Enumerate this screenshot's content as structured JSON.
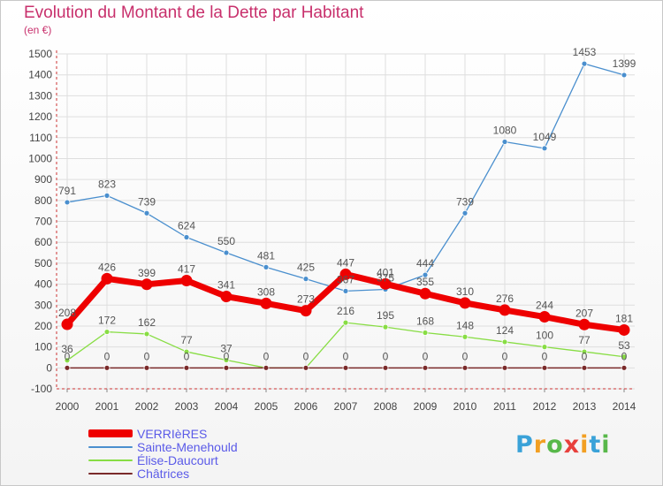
{
  "title": "Evolution du Montant de la Dette par Habitant",
  "subtitle": "(en €)",
  "logo": {
    "letters": [
      "P",
      "r",
      "o",
      "x",
      "i",
      "t",
      "i"
    ],
    "colors": [
      "#3aa2d8",
      "#f29f22",
      "#58b84a",
      "#e8403c",
      "#f29f22",
      "#3aa2d8",
      "#58b84a"
    ]
  },
  "chart_data": {
    "type": "line",
    "x": [
      "2000",
      "2001",
      "2002",
      "2003",
      "2004",
      "2005",
      "2006",
      "2007",
      "2008",
      "2009",
      "2010",
      "2011",
      "2012",
      "2013",
      "2014"
    ],
    "ylim": [
      -100,
      1500
    ],
    "yticks": [
      "-100",
      "0",
      "100",
      "200",
      "300",
      "400",
      "500",
      "600",
      "700",
      "800",
      "900",
      "1000",
      "1100",
      "1200",
      "1300",
      "1400",
      "1500"
    ],
    "grid": true,
    "legend_position": "bottom-left",
    "series": [
      {
        "name": "VERRIèRES",
        "color": "#ee0000",
        "values": [
          208,
          426,
          399,
          417,
          341,
          308,
          273,
          447,
          401,
          355,
          310,
          276,
          244,
          207,
          181
        ],
        "labels": [
          "208",
          "426",
          "399",
          "417",
          "341",
          "308",
          "273",
          "447",
          "401",
          "355",
          "310",
          "276",
          "244",
          "207",
          "181"
        ]
      },
      {
        "name": "Sainte-Menehould",
        "color": "#4a8fce",
        "values": [
          791,
          823,
          739,
          624,
          550,
          481,
          425,
          367,
          375,
          444,
          739,
          1080,
          1049,
          1453,
          1399
        ],
        "labels": [
          "791",
          "823",
          "739",
          "624",
          "550",
          "481",
          "425",
          "367",
          "375",
          "444",
          "739",
          "1080",
          "1049",
          "1453",
          "1399"
        ]
      },
      {
        "name": "Élise-Daucourt",
        "color": "#88dd44",
        "values": [
          36,
          172,
          162,
          77,
          37,
          0,
          0,
          216,
          195,
          168,
          148,
          124,
          100,
          77,
          53
        ],
        "labels": [
          "36",
          "172",
          "162",
          "77",
          "37",
          "",
          "",
          "216",
          "195",
          "168",
          "148",
          "124",
          "100",
          "77",
          "53"
        ]
      },
      {
        "name": "Châtrices",
        "color": "#7a2a2a",
        "values": [
          0,
          0,
          0,
          0,
          0,
          0,
          0,
          0,
          0,
          0,
          0,
          0,
          0,
          0,
          0
        ],
        "labels": [
          "0",
          "0",
          "0",
          "0",
          "0",
          "0",
          "0",
          "0",
          "0",
          "0",
          "0",
          "0",
          "0",
          "0",
          "0"
        ]
      }
    ]
  }
}
